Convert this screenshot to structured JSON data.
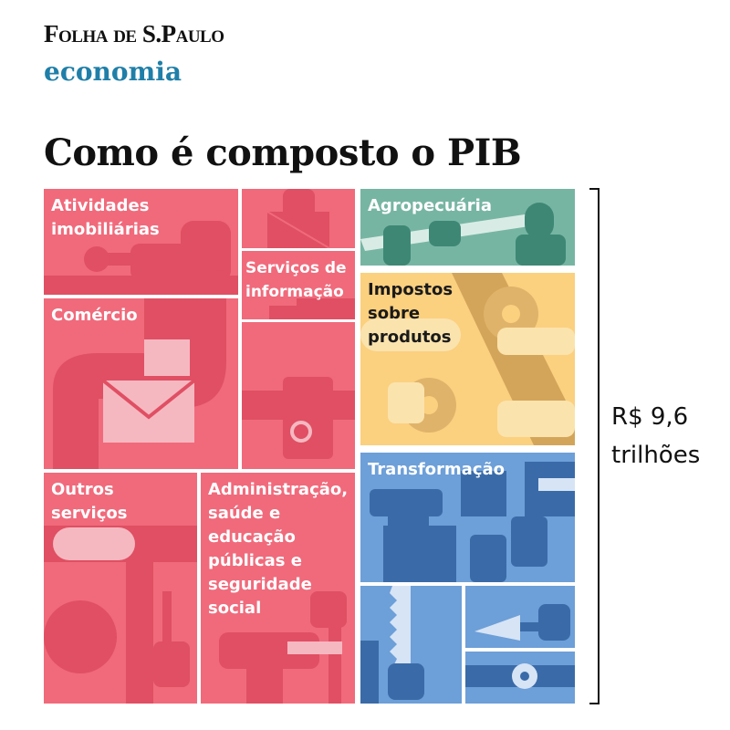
{
  "header": {
    "brand": "Folha de S.Paulo",
    "section": "economia"
  },
  "title": "Como é composto o PIB",
  "total": {
    "line1": "R$ 9,6",
    "line2": "trilhões"
  },
  "sectors": {
    "atividades_imobiliarias": "Atividades imobiliárias",
    "servicos_informacao": "Serviços de informação",
    "comercio": "Comércio",
    "outros_servicos": "Outros serviços",
    "administracao": "Administração, saúde e educação públicas e seguridade social",
    "agropecuaria": "Agropecuária",
    "impostos": "Impostos sobre produtos",
    "transformacao": "Transformação"
  },
  "colors": {
    "services_pink": "#f06a7b",
    "services_dark": "#e04f63",
    "agro_green": "#77b5a3",
    "tax_yellow": "#fbd07f",
    "industry_blue": "#6d9fd8"
  },
  "icons": [
    "hand-icon",
    "wrench-icon",
    "envelope-icon",
    "box-icon",
    "guitar-icon",
    "fork-icon",
    "syringe-icon",
    "pipe-icon",
    "donut-icon",
    "saw-icon",
    "trowel-icon",
    "gear-icon"
  ]
}
